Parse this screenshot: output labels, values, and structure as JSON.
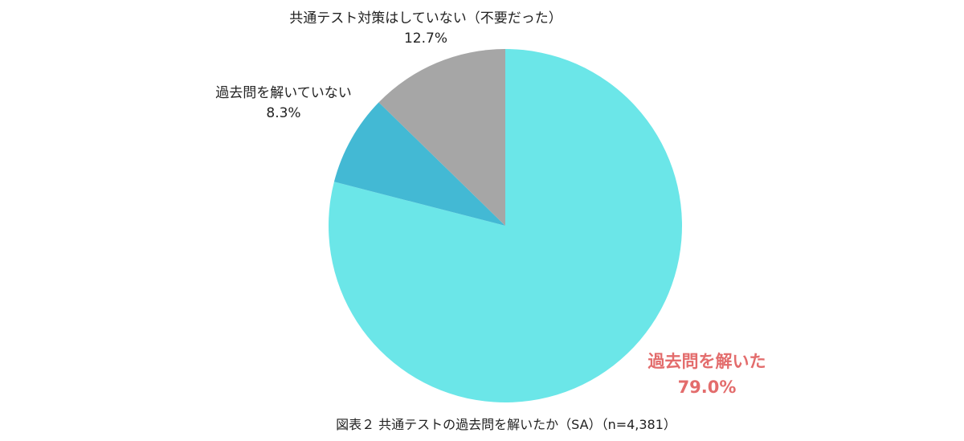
{
  "chart_data": {
    "type": "pie",
    "caption": "図表２ 共通テストの過去問を解いたか（SA）（n=4,381）",
    "slices": [
      {
        "label": "過去問を解いた",
        "value": 79.0,
        "display_value": "79.0%",
        "color": "#6be6e8",
        "highlight": true,
        "label_color": "#e36c6c"
      },
      {
        "label": "過去問を解いていない",
        "value": 8.3,
        "display_value": "8.3%",
        "color": "#43b9d4",
        "highlight": false,
        "label_color": "#222222"
      },
      {
        "label": "共通テスト対策はしていない（不要だった）",
        "value": 12.7,
        "display_value": "12.7%",
        "color": "#a6a6a6",
        "highlight": false,
        "label_color": "#222222"
      }
    ],
    "start": "12 o'clock",
    "direction": "clockwise",
    "legend": "none"
  }
}
